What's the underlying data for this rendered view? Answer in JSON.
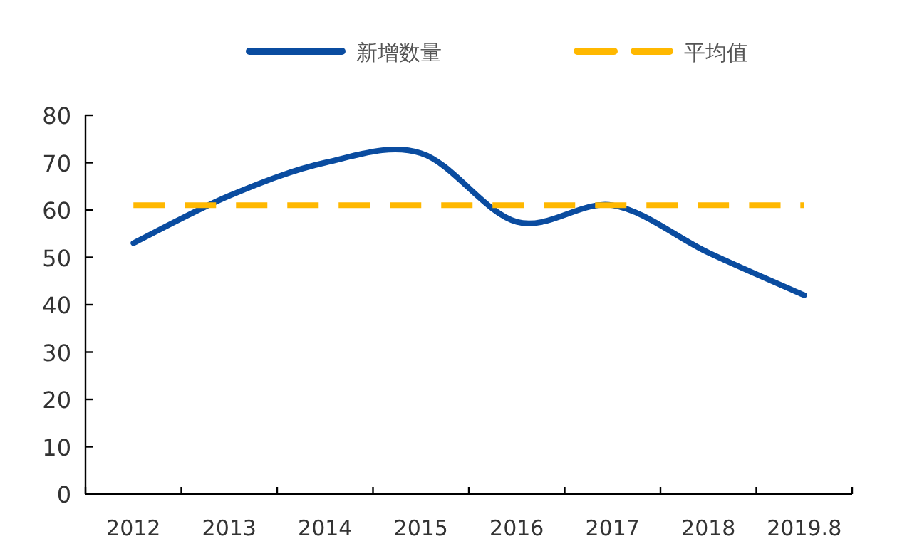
{
  "chart_data": {
    "type": "line",
    "categories": [
      "2012",
      "2013",
      "2014",
      "2015",
      "2016",
      "2017",
      "2018",
      "2019.8"
    ],
    "series": [
      {
        "name": "新增数量",
        "color": "#0a4ca0",
        "values": [
          53,
          63,
          70,
          72,
          57.5,
          61,
          51,
          42
        ]
      },
      {
        "name": "平均值",
        "color": "#ffb800",
        "values": [
          61,
          61,
          61,
          61,
          61,
          61,
          61,
          61
        ],
        "line_style": "dashed"
      }
    ],
    "ylim": [
      0,
      80
    ],
    "yticks": [
      0,
      10,
      20,
      30,
      40,
      50,
      60,
      70,
      80
    ],
    "legend": "top",
    "grid": false,
    "marker": "none"
  }
}
